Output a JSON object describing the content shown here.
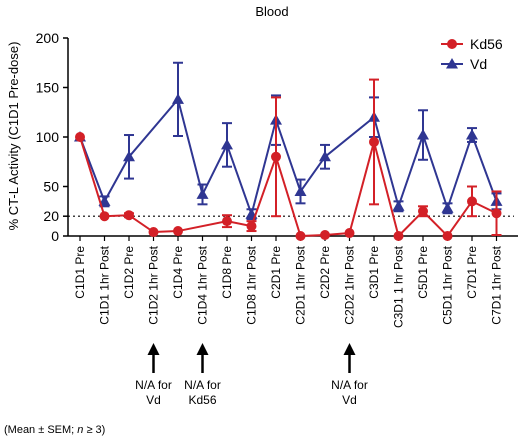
{
  "chart_data": {
    "type": "line",
    "title": "Blood",
    "ylabel": "% CT-L Activity (C1D1 Pre-dose)",
    "xlabel": "",
    "ylim": [
      0,
      200
    ],
    "yticks": [
      0,
      20,
      50,
      100,
      150,
      200
    ],
    "reference_line": 20,
    "categories": [
      "C1D1 Pre",
      "C1D1 1hr Post",
      "C1D2 Pre",
      "C1D2 1hr Post",
      "C1D4 Pre",
      "C1D4 1hr Post",
      "C1D8 Pre",
      "C1D8 1hr Post",
      "C2D1 Pre",
      "C2D1 1hr Post",
      "C2D2 Pre",
      "C2D2 1hr Post",
      "C3D1 Pre",
      "C3D1 1 hr Post",
      "C5D1 Pre",
      "C5D1 1hr Post",
      "C7D1 Pre",
      "C7D1 1hr Post"
    ],
    "series": [
      {
        "name": "Kd56",
        "color": "#d32027",
        "marker": "circle",
        "points": [
          {
            "i": 0,
            "y": 100,
            "err": 0
          },
          {
            "i": 1,
            "y": 20,
            "err": 0
          },
          {
            "i": 2,
            "y": 21,
            "err": 2
          },
          {
            "i": 3,
            "y": 4,
            "err": 0
          },
          {
            "i": 4,
            "y": 5,
            "err": 0
          },
          {
            "i": 6,
            "y": 15,
            "err": 6
          },
          {
            "i": 7,
            "y": 10,
            "err": 5
          },
          {
            "i": 8,
            "y": 80,
            "err": 60
          },
          {
            "i": 9,
            "y": 0,
            "err": 0
          },
          {
            "i": 10,
            "y": 1,
            "err": 0
          },
          {
            "i": 11,
            "y": 3,
            "err": 0
          },
          {
            "i": 12,
            "y": 95,
            "err": 63
          },
          {
            "i": 13,
            "y": 0,
            "err": 0
          },
          {
            "i": 14,
            "y": 25,
            "err": 5
          },
          {
            "i": 15,
            "y": 0,
            "err": 0
          },
          {
            "i": 16,
            "y": 35,
            "err": 15
          },
          {
            "i": 17,
            "y": 23,
            "err": 22
          }
        ]
      },
      {
        "name": "Vd",
        "color": "#2f3692",
        "marker": "triangle",
        "points": [
          {
            "i": 0,
            "y": 100,
            "err": 0
          },
          {
            "i": 1,
            "y": 35,
            "err": 5
          },
          {
            "i": 2,
            "y": 80,
            "err": 22
          },
          {
            "i": 4,
            "y": 138,
            "err": 37
          },
          {
            "i": 5,
            "y": 42,
            "err": 10
          },
          {
            "i": 6,
            "y": 92,
            "err": 22
          },
          {
            "i": 7,
            "y": 22,
            "err": 5
          },
          {
            "i": 8,
            "y": 117,
            "err": 25
          },
          {
            "i": 9,
            "y": 45,
            "err": 12
          },
          {
            "i": 10,
            "y": 80,
            "err": 12
          },
          {
            "i": 12,
            "y": 120,
            "err": 20
          },
          {
            "i": 13,
            "y": 30,
            "err": 5
          },
          {
            "i": 14,
            "y": 102,
            "err": 25
          },
          {
            "i": 15,
            "y": 28,
            "err": 5
          },
          {
            "i": 16,
            "y": 102,
            "err": 7
          },
          {
            "i": 17,
            "y": 35,
            "err": 8
          }
        ]
      }
    ],
    "legend": {
      "position": "top-right",
      "entries": [
        "Kd56",
        "Vd"
      ]
    },
    "annotations": [
      {
        "category_index": 3,
        "text_lines": [
          "N/A for",
          "Vd"
        ]
      },
      {
        "category_index": 5,
        "text_lines": [
          "N/A for",
          "Kd56"
        ]
      },
      {
        "category_index": 11,
        "text_lines": [
          "N/A for",
          "Vd"
        ]
      }
    ],
    "footnote_parts": [
      "(Mean ± SEM; ",
      "n",
      " ≥ 3)"
    ]
  }
}
